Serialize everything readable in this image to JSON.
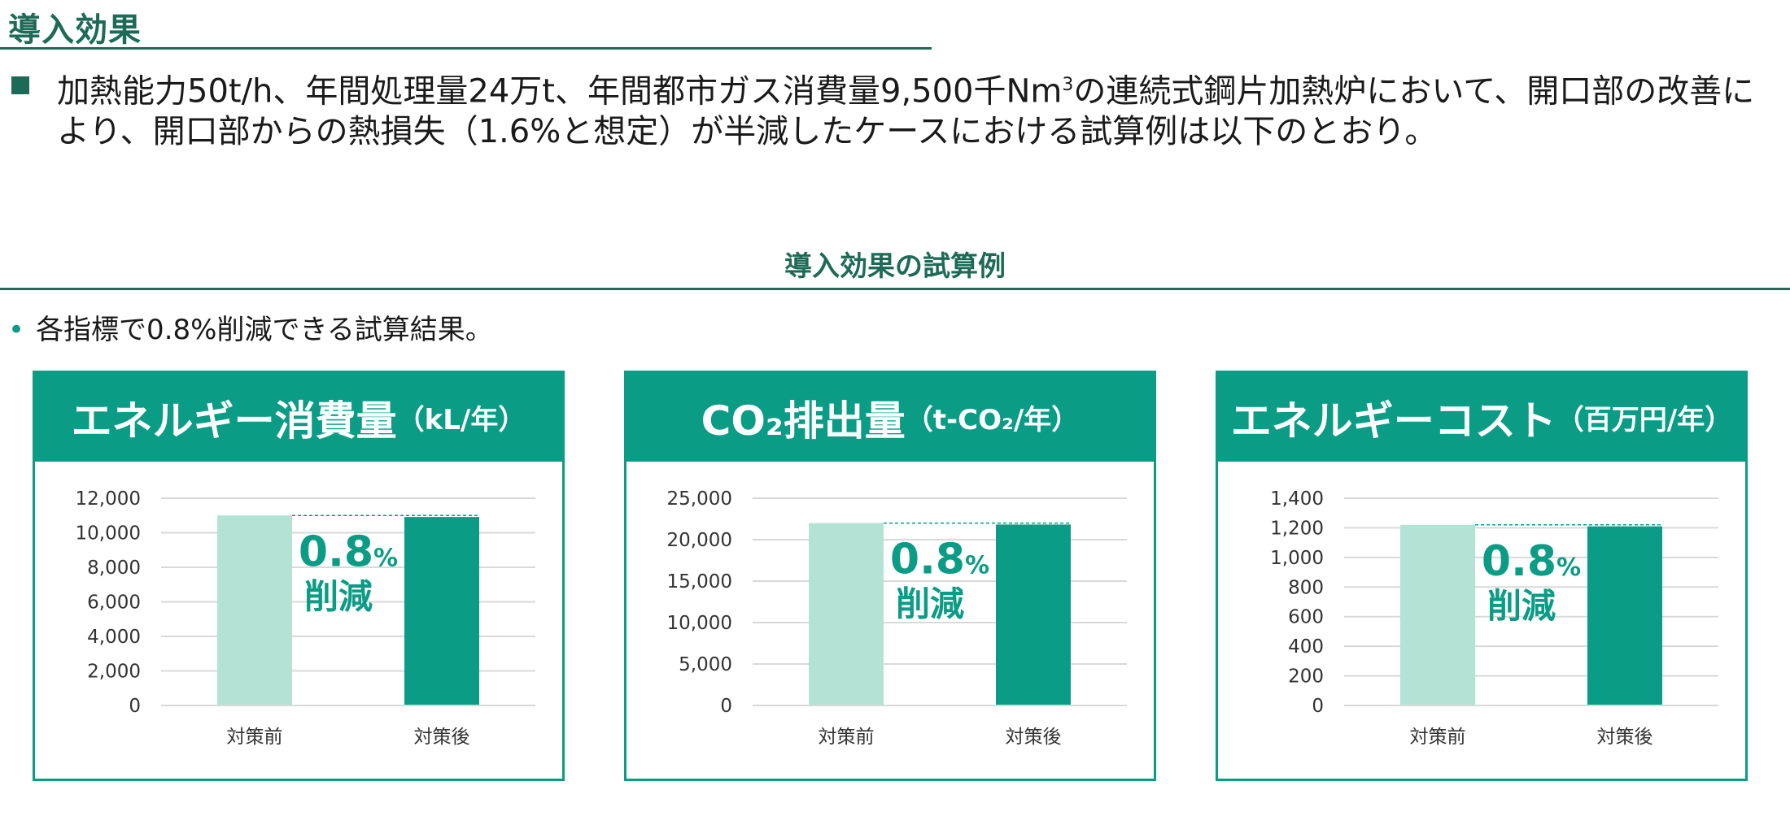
{
  "title": "導入効果",
  "intro": {
    "text_before_sup": "加熱能力50t/h、年間処理量24万t、年間都市ガス消費量9,500千Nm",
    "sup": "3",
    "text_after_sup": "の連続式鋼片加熱炉において、開口部の改善により、開口部からの熱損失（1.6%と想定）が半減したケースにおける試算例は以下のとおり。"
  },
  "section_title": "導入効果の試算例",
  "note": "各指標で0.8%削減できる試算結果。",
  "colors": {
    "before": "#b3e3d5",
    "after": "#0a9c85",
    "accent": "#0a9c85",
    "dark_green": "#1d6b57"
  },
  "chart_data": [
    {
      "type": "bar",
      "title_main": "エネルギー消費量",
      "title_unit": "（kL/年）",
      "categories": [
        "対策前",
        "対策後"
      ],
      "values": [
        11000,
        10912
      ],
      "ylim": [
        0,
        12000
      ],
      "yticks": [
        0,
        2000,
        4000,
        6000,
        8000,
        10000,
        12000
      ],
      "ytick_labels": [
        "0",
        "2,000",
        "4,000",
        "6,000",
        "8,000",
        "10,000",
        "12,000"
      ],
      "annotation_pct": "0.8",
      "annotation_pct_unit": "%",
      "annotation_word": "削減",
      "grid": true
    },
    {
      "type": "bar",
      "title_main": "CO₂排出量",
      "title_unit": "（t-CO₂/年）",
      "categories": [
        "対策前",
        "対策後"
      ],
      "values": [
        22000,
        21824
      ],
      "ylim": [
        0,
        25000
      ],
      "yticks": [
        0,
        5000,
        10000,
        15000,
        20000,
        25000
      ],
      "ytick_labels": [
        "0",
        "5,000",
        "10,000",
        "15,000",
        "20,000",
        "25,000"
      ],
      "annotation_pct": "0.8",
      "annotation_pct_unit": "%",
      "annotation_word": "削減",
      "grid": true
    },
    {
      "type": "bar",
      "title_main": "エネルギーコスト",
      "title_unit": "（百万円/年）",
      "categories": [
        "対策前",
        "対策後"
      ],
      "values": [
        1220,
        1210
      ],
      "ylim": [
        0,
        1400
      ],
      "yticks": [
        0,
        200,
        400,
        600,
        800,
        1000,
        1200,
        1400
      ],
      "ytick_labels": [
        "0",
        "200",
        "400",
        "600",
        "800",
        "1,000",
        "1,200",
        "1,400"
      ],
      "annotation_pct": "0.8",
      "annotation_pct_unit": "%",
      "annotation_word": "削減",
      "grid": true
    }
  ]
}
